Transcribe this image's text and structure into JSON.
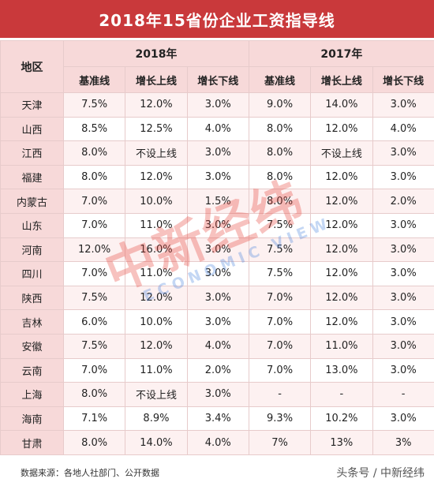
{
  "title": "2018年15省份企业工资指导线",
  "header": {
    "region_label": "地区",
    "years": [
      "2018年",
      "2017年"
    ],
    "subcolumns": [
      "基准线",
      "增长上线",
      "增长下线"
    ]
  },
  "rows": [
    {
      "region": "天津",
      "v2018": [
        "7.5%",
        "12.0%",
        "3.0%"
      ],
      "v2017": [
        "9.0%",
        "14.0%",
        "3.0%"
      ]
    },
    {
      "region": "山西",
      "v2018": [
        "8.5%",
        "12.5%",
        "4.0%"
      ],
      "v2017": [
        "8.0%",
        "12.0%",
        "4.0%"
      ]
    },
    {
      "region": "江西",
      "v2018": [
        "8.0%",
        "不设上线",
        "3.0%"
      ],
      "v2017": [
        "8.0%",
        "不设上线",
        "3.0%"
      ]
    },
    {
      "region": "福建",
      "v2018": [
        "8.0%",
        "12.0%",
        "3.0%"
      ],
      "v2017": [
        "8.0%",
        "12.0%",
        "3.0%"
      ]
    },
    {
      "region": "内蒙古",
      "v2018": [
        "7.0%",
        "10.0%",
        "1.5%"
      ],
      "v2017": [
        "8.0%",
        "12.0%",
        "2.0%"
      ]
    },
    {
      "region": "山东",
      "v2018": [
        "7.0%",
        "11.0%",
        "3.0%"
      ],
      "v2017": [
        "7.5%",
        "12.0%",
        "3.0%"
      ]
    },
    {
      "region": "河南",
      "v2018": [
        "12.0%",
        "16.0%",
        "3.0%"
      ],
      "v2017": [
        "7.5%",
        "12.0%",
        "3.0%"
      ]
    },
    {
      "region": "四川",
      "v2018": [
        "7.0%",
        "11.0%",
        "3.0%"
      ],
      "v2017": [
        "7.5%",
        "12.0%",
        "3.0%"
      ]
    },
    {
      "region": "陕西",
      "v2018": [
        "7.5%",
        "12.0%",
        "3.0%"
      ],
      "v2017": [
        "7.0%",
        "12.0%",
        "3.0%"
      ]
    },
    {
      "region": "吉林",
      "v2018": [
        "6.0%",
        "10.0%",
        "3.0%"
      ],
      "v2017": [
        "7.0%",
        "12.0%",
        "3.0%"
      ]
    },
    {
      "region": "安徽",
      "v2018": [
        "7.5%",
        "12.0%",
        "4.0%"
      ],
      "v2017": [
        "7.0%",
        "11.0%",
        "3.0%"
      ]
    },
    {
      "region": "云南",
      "v2018": [
        "7.0%",
        "11.0%",
        "2.0%"
      ],
      "v2017": [
        "7.0%",
        "13.0%",
        "3.0%"
      ]
    },
    {
      "region": "上海",
      "v2018": [
        "8.0%",
        "不设上线",
        "3.0%"
      ],
      "v2017": [
        "-",
        "-",
        "-"
      ]
    },
    {
      "region": "海南",
      "v2018": [
        "7.1%",
        "8.9%",
        "3.4%"
      ],
      "v2017": [
        "9.3%",
        "10.2%",
        "3.0%"
      ]
    },
    {
      "region": "甘肃",
      "v2018": [
        "8.0%",
        "14.0%",
        "4.0%"
      ],
      "v2017": [
        "7%",
        "13%",
        "3%"
      ]
    }
  ],
  "footer": {
    "source": "数据来源：各地人社部门、公开数据",
    "credit": "头条号 / 中新经纬"
  },
  "watermark": {
    "main": "中新经纬",
    "sub": "ECONOMIC VIEW"
  },
  "colors": {
    "title_bg": "#c9393b",
    "header_bg": "#f7d9d9",
    "row_alt": "#fdf1f1"
  }
}
